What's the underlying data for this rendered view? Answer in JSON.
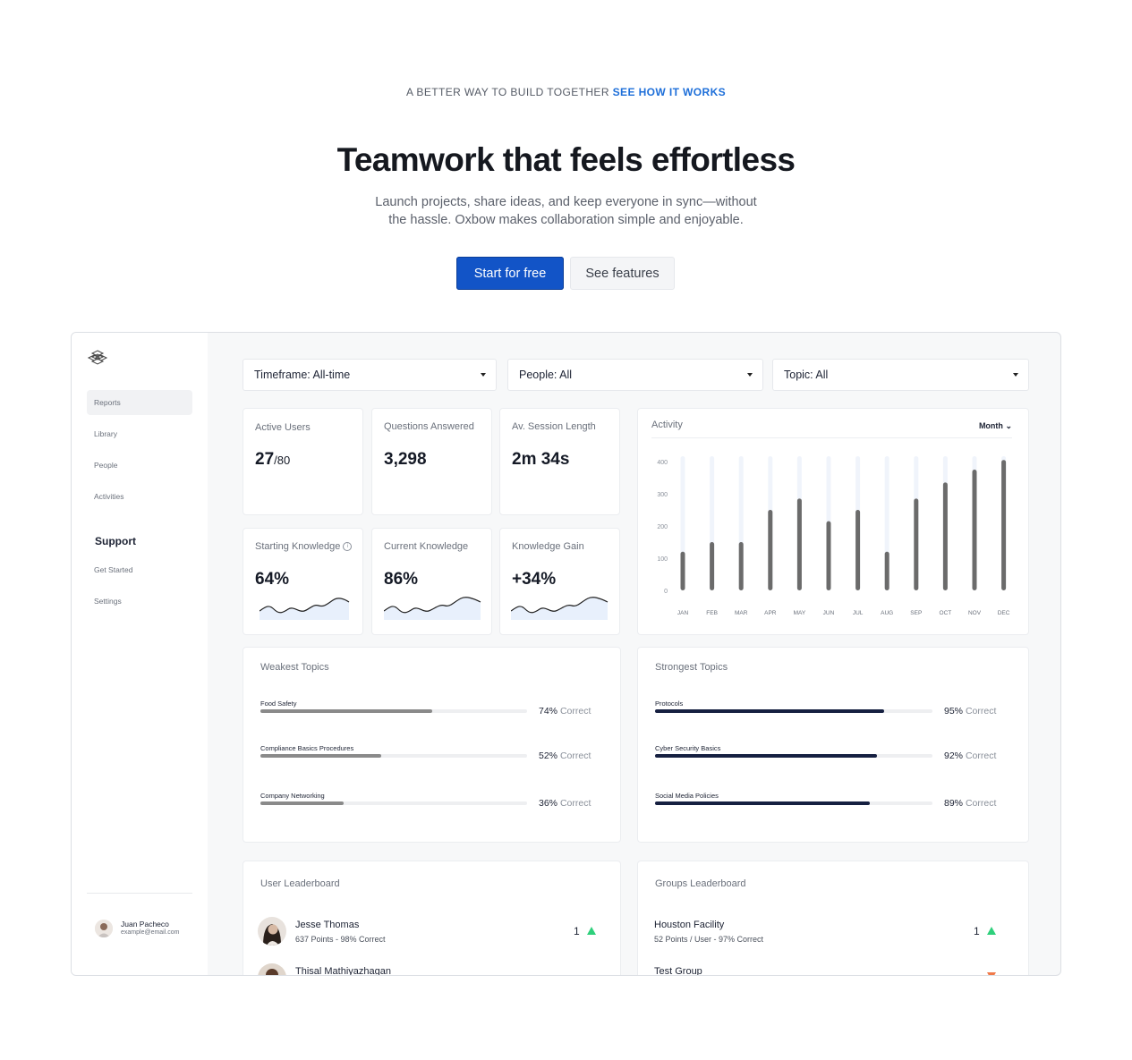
{
  "hero": {
    "eyebrow": "A BETTER WAY TO BUILD TOGETHER",
    "eyebrow_link": "SEE HOW IT WORKS",
    "title": "Teamwork that feels effortless",
    "subtitle": "Launch projects, share ideas, and keep everyone in sync—without the hassle. Oxbow makes collaboration simple and enjoyable.",
    "primary_cta": "Start for free",
    "secondary_cta": "See features"
  },
  "sidebar": {
    "logo": "cube-stack-logo-icon",
    "items": [
      {
        "label": "Reports",
        "active": true
      },
      {
        "label": "Library",
        "active": false
      },
      {
        "label": "People",
        "active": false
      },
      {
        "label": "Activities",
        "active": false
      }
    ],
    "support_heading": "Support",
    "support_items": [
      {
        "label": "Get Started"
      },
      {
        "label": "Settings"
      }
    ],
    "user": {
      "name": "Juan Pacheco",
      "email": "example@email.com"
    }
  },
  "filters": {
    "timeframe": "Timeframe: All-time",
    "people": "People: All",
    "topic": "Topic: All"
  },
  "stats": {
    "active_users": {
      "label": "Active Users",
      "value": "27",
      "suffix": "/80"
    },
    "questions_answered": {
      "label": "Questions Answered",
      "value": "3,298"
    },
    "session_length": {
      "label": "Av. Session Length",
      "value": "2m 34s"
    },
    "starting_knowledge": {
      "label": "Starting Knowledge",
      "value": "64%"
    },
    "current_knowledge": {
      "label": "Current Knowledge",
      "value": "86%"
    },
    "knowledge_gain": {
      "label": "Knowledge Gain",
      "value": "+34%"
    }
  },
  "activity": {
    "title": "Activity",
    "period": "Month"
  },
  "chart_data": {
    "type": "bar",
    "title": "Activity",
    "categories": [
      "JAN",
      "FEB",
      "MAR",
      "APR",
      "MAY",
      "JUN",
      "JUL",
      "AUG",
      "SEP",
      "OCT",
      "NOV",
      "DEC"
    ],
    "values": [
      120,
      150,
      150,
      250,
      285,
      215,
      250,
      120,
      285,
      335,
      375,
      405
    ],
    "ylim": [
      0,
      400
    ],
    "yticks": [
      0,
      100,
      200,
      300,
      400
    ],
    "ytick_labels": [
      "0",
      "100",
      "200",
      "300",
      "400"
    ],
    "grid": false,
    "colors": {
      "bar": "#6b6b6b",
      "track": "#f0f4fb"
    }
  },
  "weakest_topics": {
    "title": "Weakest Topics",
    "correct_label": "Correct",
    "color": "#8a8a8a",
    "items": [
      {
        "name": "Food Safety",
        "pct": 74,
        "pct_label": "74%"
      },
      {
        "name": "Compliance Basics Procedures",
        "pct": 52,
        "pct_label": "52%"
      },
      {
        "name": "Company Networking",
        "pct": 36,
        "pct_label": "36%"
      }
    ]
  },
  "strongest_topics": {
    "title": "Strongest Topics",
    "correct_label": "Correct",
    "color": "#162041",
    "items": [
      {
        "name": "Protocols",
        "pct": 95,
        "pct_label": "95%"
      },
      {
        "name": "Cyber Security Basics",
        "pct": 92,
        "pct_label": "92%"
      },
      {
        "name": "Social Media Policies",
        "pct": 89,
        "pct_label": "89%"
      }
    ]
  },
  "user_leaderboard": {
    "title": "User Leaderboard",
    "rows": [
      {
        "name": "Jesse Thomas",
        "meta": "637 Points - 98% Correct",
        "rank": "1",
        "trend": "up"
      },
      {
        "name": "Thisal Mathiyazhagan",
        "meta": "",
        "rank": "",
        "trend": "down"
      }
    ]
  },
  "groups_leaderboard": {
    "title": "Groups Leaderboard",
    "rows": [
      {
        "name": "Houston Facility",
        "meta": "52 Points / User - 97% Correct",
        "rank": "1",
        "trend": "up"
      },
      {
        "name": "Test Group",
        "meta": "",
        "rank": "",
        "trend": "down"
      }
    ]
  }
}
